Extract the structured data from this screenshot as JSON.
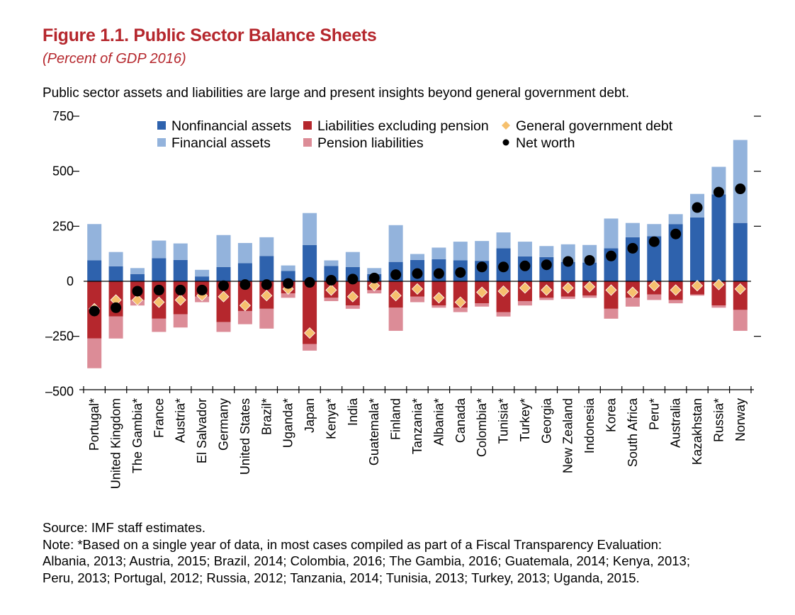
{
  "figure": {
    "title": "Figure 1.1. Public Sector Balance Sheets",
    "subtitle": "(Percent of GDP 2016)",
    "description": "Public sector assets and liabilities are large and present insights beyond general government debt."
  },
  "footer": {
    "source": "Source: IMF staff estimates.",
    "note_lines": [
      "Note: *Based on a single year of data, in most cases compiled as part of a Fiscal Transparency Evaluation:",
      "Albania, 2013; Austria, 2015; Brazil, 2014; Colombia, 2016; The Gambia, 2016; Guatemala, 2014; Kenya, 2013;",
      "Peru, 2013; Portugal, 2012; Russia, 2012; Tanzania, 2014; Tunisia, 2013; Turkey, 2013; Uganda, 2015."
    ]
  },
  "colors": {
    "nonfinancial_assets": "#2e62ad",
    "financial_assets": "#93b3dc",
    "liabilities_excl_pension": "#b5272d",
    "pension_liabilities": "#dc8c97",
    "general_government_debt": "#f6c06d",
    "net_worth": "#000000"
  },
  "chart_data": {
    "type": "bar",
    "stacked": true,
    "title": "",
    "xlabel": "",
    "ylabel": "",
    "ylim": [
      -500,
      750
    ],
    "yticks": [
      -500,
      -250,
      0,
      250,
      500,
      750
    ],
    "ytick_labels": [
      "–500",
      "–250",
      "0",
      "250",
      "500",
      "750"
    ],
    "legend_position": "top",
    "categories": [
      "Portugal*",
      "United Kingdom",
      "The Gambia*",
      "France",
      "Austria*",
      "El Salvador",
      "Germany",
      "United States",
      "Brazil*",
      "Uganda*",
      "Japan",
      "Kenya*",
      "India",
      "Guatemala*",
      "Finland",
      "Tanzania*",
      "Albania*",
      "Canada",
      "Colombia*",
      "Tunisia*",
      "Turkey*",
      "Georgia",
      "New Zealand",
      "Indonesia",
      "Korea",
      "South Africa",
      "Peru*",
      "Australia",
      "Kazakhstan",
      "Russia*",
      "Norway"
    ],
    "series": [
      {
        "name": "Nonfinancial assets",
        "type": "bar",
        "values": [
          95,
          68,
          33,
          105,
          97,
          22,
          65,
          82,
          115,
          47,
          165,
          70,
          65,
          33,
          88,
          97,
          100,
          95,
          93,
          150,
          113,
          110,
          88,
          85,
          150,
          200,
          205,
          260,
          290,
          395,
          265
        ]
      },
      {
        "name": "Financial assets",
        "type": "bar",
        "values": [
          165,
          65,
          27,
          80,
          75,
          30,
          145,
          92,
          85,
          25,
          145,
          25,
          68,
          27,
          167,
          27,
          53,
          85,
          90,
          72,
          67,
          50,
          80,
          80,
          135,
          65,
          55,
          45,
          107,
          125,
          377
        ]
      },
      {
        "name": "Liabilities excluding pension",
        "type": "bar",
        "values": [
          -260,
          -160,
          -85,
          -170,
          -150,
          -70,
          -185,
          -135,
          -125,
          -55,
          -285,
          -75,
          -110,
          -40,
          -120,
          -70,
          -110,
          -120,
          -100,
          -140,
          -90,
          -75,
          -70,
          -65,
          -125,
          -75,
          -60,
          -85,
          -60,
          -110,
          -130
        ]
      },
      {
        "name": "Pension liabilities",
        "type": "bar",
        "values": [
          -135,
          -100,
          -25,
          -60,
          -60,
          -25,
          -45,
          -60,
          -90,
          -20,
          -30,
          -15,
          -15,
          -15,
          -105,
          -25,
          -10,
          -20,
          -15,
          -20,
          -20,
          -10,
          -10,
          -10,
          -45,
          -40,
          -25,
          -15,
          -5,
          -10,
          -95
        ]
      },
      {
        "name": "General government debt",
        "type": "marker",
        "values": [
          -125,
          -85,
          -85,
          -95,
          -85,
          -65,
          -70,
          -110,
          -65,
          -35,
          -235,
          -40,
          -70,
          -20,
          -65,
          -35,
          -75,
          -95,
          -50,
          -45,
          -30,
          -40,
          -30,
          -25,
          -40,
          -50,
          -20,
          -40,
          -20,
          -15,
          -35
        ]
      },
      {
        "name": "Net worth",
        "type": "marker",
        "values": [
          -135,
          -120,
          -45,
          -40,
          -40,
          -40,
          -20,
          -15,
          -15,
          -10,
          -5,
          5,
          10,
          15,
          30,
          35,
          35,
          40,
          65,
          65,
          70,
          75,
          90,
          95,
          115,
          150,
          180,
          215,
          335,
          405,
          420
        ]
      }
    ]
  }
}
